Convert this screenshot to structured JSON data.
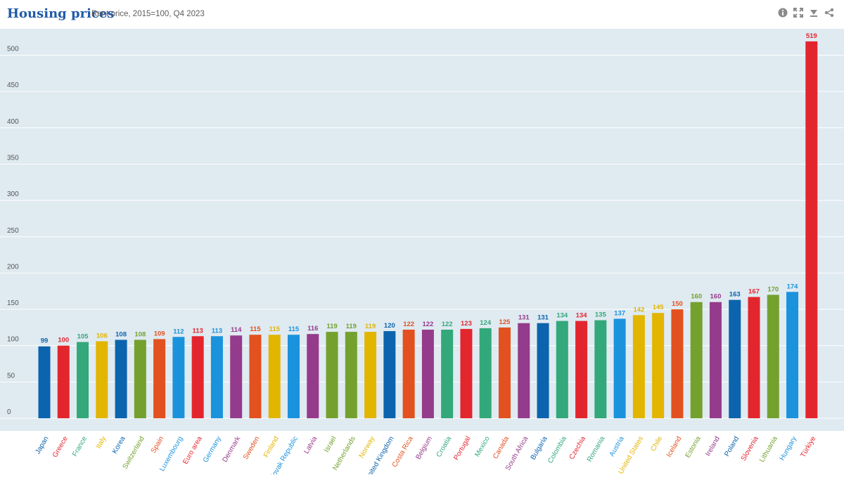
{
  "header": {
    "title": "Housing prices",
    "subtitle": "Rent price, 2015=100, Q4 2023"
  },
  "toolbar": {
    "icons": [
      "info-icon",
      "fullscreen-icon",
      "download-icon",
      "share-icon"
    ]
  },
  "colors": {
    "plot_background": "#dfeaf1",
    "gridline": "#ffffff",
    "axis_text": "#555555"
  },
  "chart_data": {
    "type": "bar",
    "title": "Housing prices",
    "subtitle": "Rent price, 2015=100, Q4 2023",
    "ylim": [
      0,
      550
    ],
    "yticks": [
      0,
      50,
      100,
      150,
      200,
      250,
      300,
      350,
      400,
      450,
      500
    ],
    "grid": true,
    "data_labels": true,
    "categories": [
      "Japan",
      "Greece",
      "France",
      "Italy",
      "Korea",
      "Switzerland",
      "Spain",
      "Luxembourg",
      "Euro area",
      "Germany",
      "Denmark",
      "Sweden",
      "Finland",
      "Slovak Republic",
      "Latvia",
      "Israel",
      "Netherlands",
      "Norway",
      "United Kingdom",
      "Costa Rica",
      "Belgium",
      "Croatia",
      "Portugal",
      "Mexico",
      "Canada",
      "South Africa",
      "Bulgaria",
      "Colombia",
      "Czechia",
      "Romania",
      "Austria",
      "United States",
      "Chile",
      "Iceland",
      "Estonia",
      "Ireland",
      "Poland",
      "Slovenia",
      "Lithuania",
      "Hungary",
      "Türkiye"
    ],
    "values": [
      99,
      100,
      105,
      106,
      108,
      108,
      109,
      112,
      113,
      113,
      114,
      115,
      115,
      115,
      116,
      119,
      119,
      119,
      120,
      122,
      122,
      122,
      123,
      124,
      125,
      131,
      131,
      134,
      134,
      135,
      137,
      142,
      145,
      150,
      160,
      160,
      163,
      167,
      170,
      174,
      519
    ],
    "bar_colors": [
      "#0b64ad",
      "#e3262e",
      "#33a87a",
      "#e2b500",
      "#0b64ad",
      "#74a12e",
      "#e2511f",
      "#1a93dc",
      "#e3262e",
      "#1a93dc",
      "#953b8b",
      "#e2511f",
      "#e2b500",
      "#1a93dc",
      "#953b8b",
      "#74a12e",
      "#74a12e",
      "#e2b500",
      "#0b64ad",
      "#e2511f",
      "#953b8b",
      "#33a87a",
      "#e3262e",
      "#33a87a",
      "#e2511f",
      "#953b8b",
      "#0b64ad",
      "#33a87a",
      "#e3262e",
      "#33a87a",
      "#1a93dc",
      "#e2b500",
      "#e2b500",
      "#e2511f",
      "#74a12e",
      "#953b8b",
      "#0b64ad",
      "#e3262e",
      "#74a12e",
      "#1a93dc",
      "#e3262e"
    ]
  }
}
